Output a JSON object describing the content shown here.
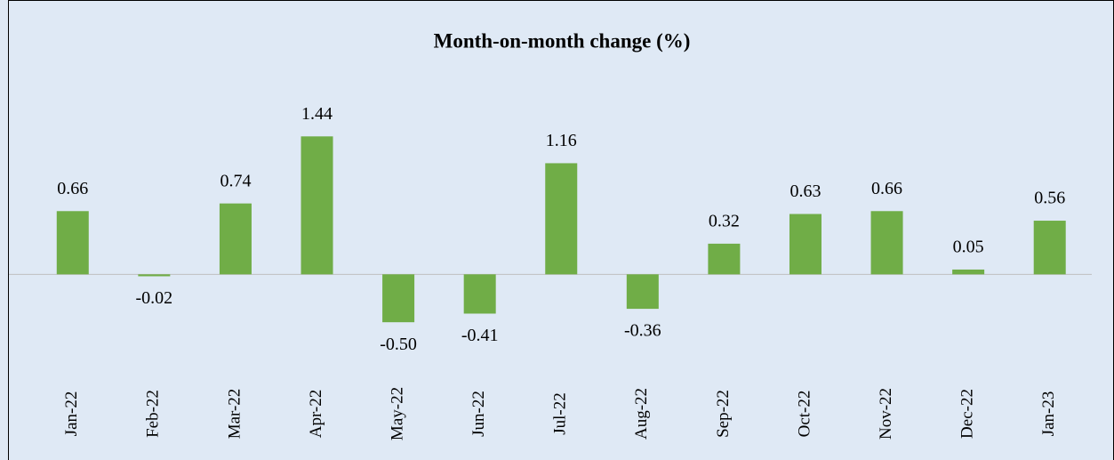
{
  "chart_data": {
    "type": "bar",
    "title": "Month-on-month change (%)",
    "categories": [
      "Jan-22",
      "Feb-22",
      "Mar-22",
      "Apr-22",
      "May-22",
      "Jun-22",
      "Jul-22",
      "Aug-22",
      "Sep-22",
      "Oct-22",
      "Nov-22",
      "Dec-22",
      "Jan-23"
    ],
    "values": [
      0.66,
      -0.02,
      0.74,
      1.44,
      -0.5,
      -0.41,
      1.16,
      -0.36,
      0.32,
      0.63,
      0.66,
      0.05,
      0.56
    ],
    "value_labels": [
      "0.66",
      "-0.02",
      "0.74",
      "1.44",
      "-0.50",
      "-0.41",
      "1.16",
      "-0.36",
      "0.32",
      "0.63",
      "0.66",
      "0.05",
      "0.56"
    ],
    "color": "#70ad47",
    "ylim": [
      -1,
      2
    ]
  }
}
